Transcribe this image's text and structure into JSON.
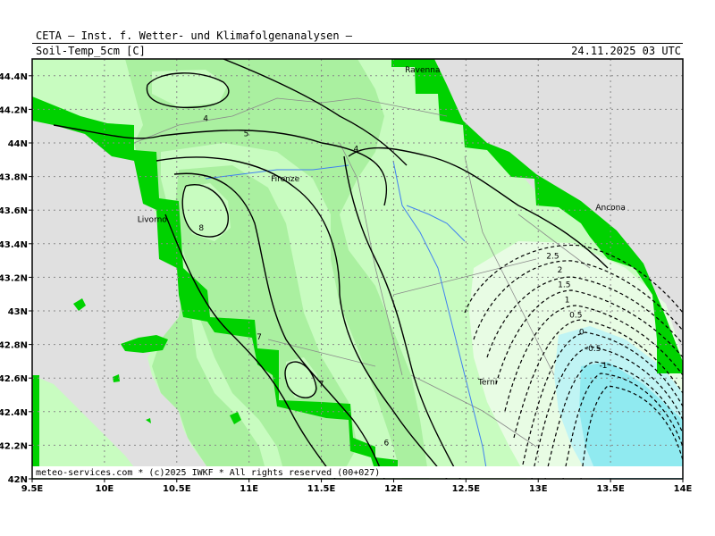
{
  "header": {
    "institute": "CETA – Inst. f. Wetter- und Klimafolgenanalysen –",
    "parameter": "Soil-Temp_5cm [C]",
    "datetime": "24.11.2025 03 UTC"
  },
  "credit": "meteo-services.com * (c)2025 IWKF * All rights reserved (00+027)",
  "map": {
    "lon_range": [
      9.5,
      14.0
    ],
    "lat_range": [
      42.0,
      44.5
    ],
    "lon_ticks": [
      "9.5E",
      "10E",
      "10.5E",
      "11E",
      "11.5E",
      "12E",
      "12.5E",
      "13E",
      "13.5E",
      "14E"
    ],
    "lat_ticks": [
      "42N",
      "42.2N",
      "42.4N",
      "42.6N",
      "42.8N",
      "43N",
      "43.2N",
      "43.4N",
      "43.6N",
      "43.8N",
      "44N",
      "44.2N",
      "44.4N"
    ],
    "grid": true,
    "cities": [
      {
        "name": "Ravenna",
        "lon": 12.2,
        "lat": 44.42
      },
      {
        "name": "Firenze",
        "lon": 11.25,
        "lat": 43.77
      },
      {
        "name": "Livorno",
        "lon": 10.33,
        "lat": 43.53
      },
      {
        "name": "Ancona",
        "lon": 13.5,
        "lat": 43.6
      },
      {
        "name": "Terni",
        "lon": 12.65,
        "lat": 42.56
      }
    ],
    "contour_labels": [
      {
        "text": "4",
        "lon": 10.7,
        "lat": 44.13
      },
      {
        "text": "5",
        "lon": 10.98,
        "lat": 44.04
      },
      {
        "text": "4",
        "lon": 11.74,
        "lat": 43.95
      },
      {
        "text": "8",
        "lon": 10.67,
        "lat": 43.48
      },
      {
        "text": "7",
        "lon": 11.07,
        "lat": 42.83
      },
      {
        "text": "7",
        "lon": 11.5,
        "lat": 42.55
      },
      {
        "text": "6",
        "lon": 11.95,
        "lat": 42.2
      },
      {
        "text": "2.5",
        "lon": 13.1,
        "lat": 43.31
      },
      {
        "text": "2",
        "lon": 13.15,
        "lat": 43.23
      },
      {
        "text": "1.5",
        "lon": 13.18,
        "lat": 43.14
      },
      {
        "text": "1",
        "lon": 13.2,
        "lat": 43.05
      },
      {
        "text": "0.5",
        "lon": 13.26,
        "lat": 42.96
      },
      {
        "text": "0",
        "lon": 13.3,
        "lat": 42.86
      },
      {
        "text": "-0.5",
        "lon": 13.38,
        "lat": 42.76
      },
      {
        "text": "-1",
        "lon": 13.45,
        "lat": 42.66
      }
    ],
    "colors": {
      "sea": "#e0e0e0",
      "coast_band": "#00d200",
      "band_4_5": "#c8fcc0",
      "band_5_6": "#aaf0a0",
      "band_6_7": "#c8fcc0",
      "band_7_8": "#aaf0a0",
      "band_cold": "#e8fce4",
      "band_neg": "#c0f4f4",
      "band_very_cold": "#90eaf0",
      "rivers": "#4080f0"
    }
  }
}
